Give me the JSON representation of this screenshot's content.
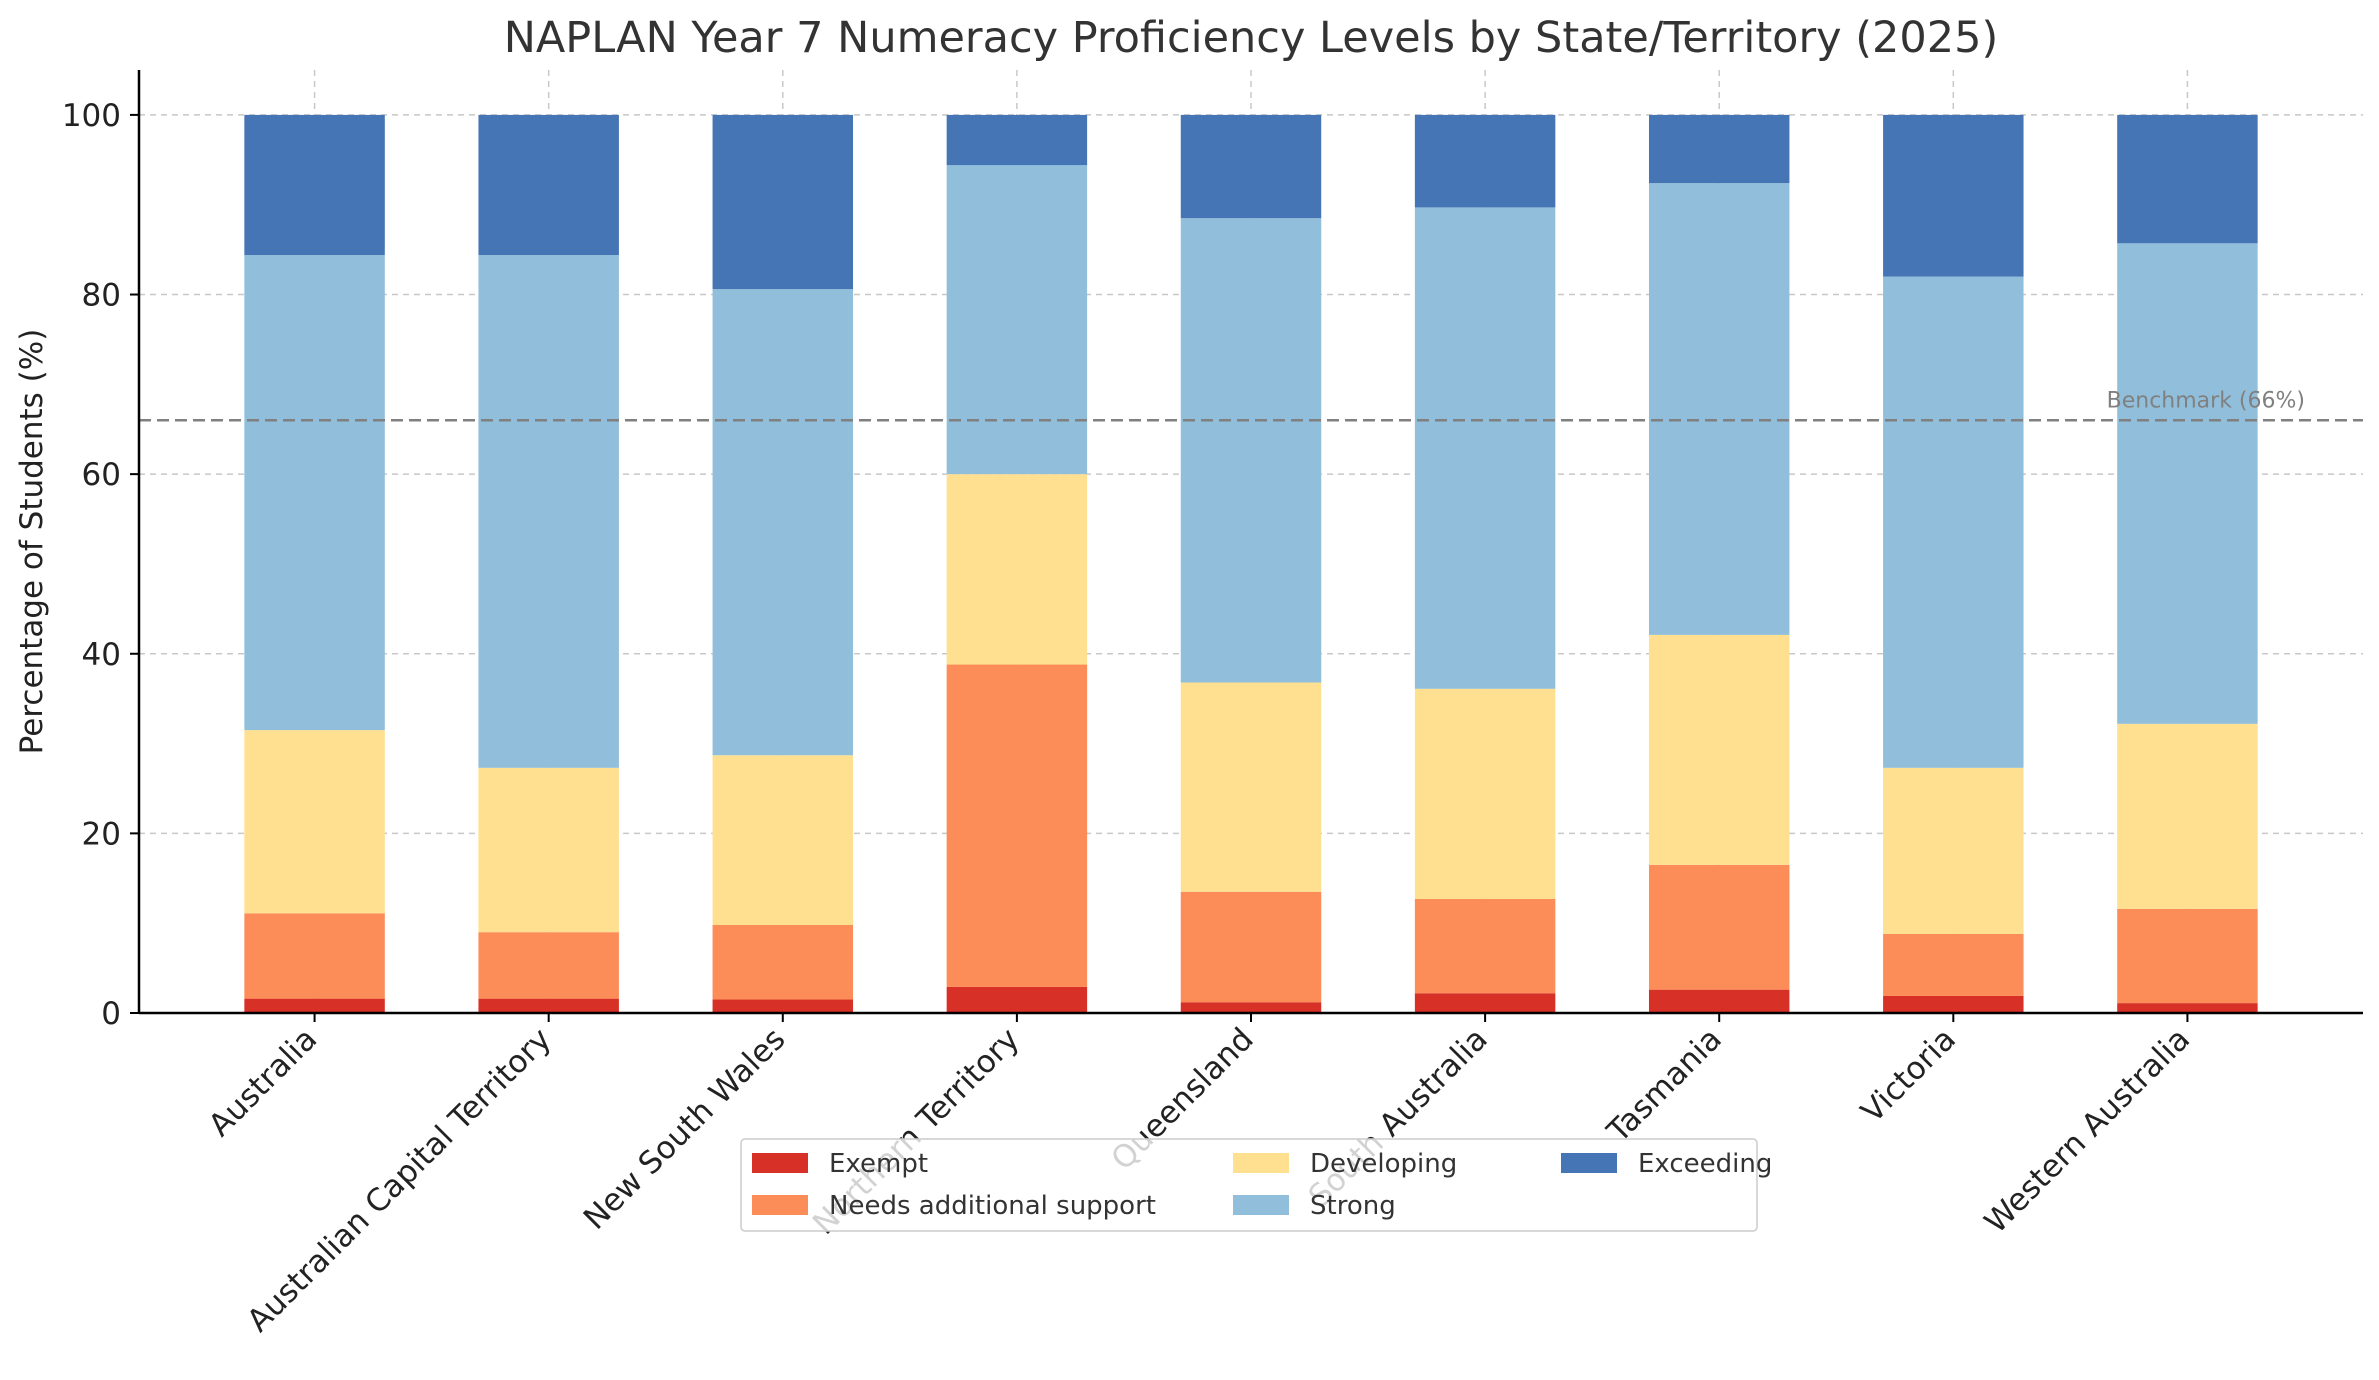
{
  "chart_data": {
    "type": "bar",
    "stacked": true,
    "title": "NAPLAN Year 7 Numeracy Proficiency Levels by State/Territory (2025)",
    "xlabel": "",
    "ylabel": "Percentage of Students (%)",
    "ylim": [
      0,
      105
    ],
    "yticks": [
      0,
      20,
      40,
      60,
      80,
      100
    ],
    "grid": true,
    "legend_position": "bottom-center",
    "categories": [
      "Australia",
      "Australian Capital Territory",
      "New South Wales",
      "Northern Territory",
      "Queensland",
      "South Australia",
      "Tasmania",
      "Victoria",
      "Western Australia"
    ],
    "series": [
      {
        "name": "Exempt",
        "color": "#d73027",
        "values": [
          1.6,
          1.6,
          1.5,
          2.9,
          1.2,
          2.2,
          2.6,
          1.9,
          1.1
        ]
      },
      {
        "name": "Needs additional support",
        "color": "#fc8d59",
        "values": [
          9.5,
          7.4,
          8.3,
          35.9,
          12.3,
          10.5,
          13.9,
          6.9,
          10.5
        ]
      },
      {
        "name": "Developing",
        "color": "#fee090",
        "values": [
          20.4,
          18.3,
          18.9,
          21.2,
          23.3,
          23.4,
          25.6,
          18.5,
          20.6
        ]
      },
      {
        "name": "Strong",
        "color": "#91bfdb",
        "values": [
          52.9,
          57.1,
          51.9,
          34.4,
          51.7,
          53.6,
          50.3,
          54.7,
          53.5
        ]
      },
      {
        "name": "Exceeding",
        "color": "#4575b4",
        "values": [
          15.6,
          15.6,
          19.4,
          5.6,
          11.5,
          10.3,
          7.6,
          18.0,
          14.3
        ]
      }
    ],
    "reference_line": {
      "value": 66,
      "label": "Benchmark (66%)",
      "color": "#808080"
    }
  }
}
